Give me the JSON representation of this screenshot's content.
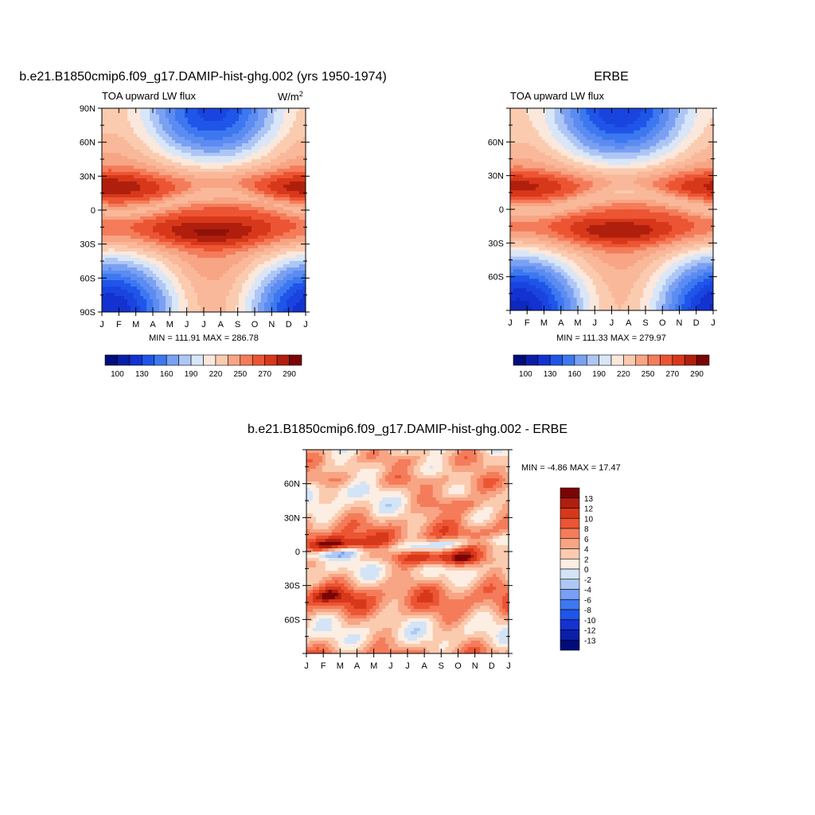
{
  "panels": [
    {
      "title": "b.e21.B1850cmip6.f09_g17.DAMIP-hist-ghg.002 (yrs 1950-1974)",
      "left_label": "TOA upward LW flux",
      "units": "W/m",
      "units_sup": "2",
      "stats": "MIN = 111.91 MAX = 286.78",
      "lat_ticks": [
        "90N",
        "60N",
        "30N",
        "0",
        "30S",
        "60S",
        "90S"
      ],
      "month_ticks": [
        "J",
        "F",
        "M",
        "A",
        "M",
        "J",
        "J",
        "A",
        "S",
        "O",
        "N",
        "D",
        "J"
      ]
    },
    {
      "title": "ERBE",
      "left_label": "TOA upward LW flux",
      "stats": "MIN = 111.33 MAX = 279.97",
      "lat_ticks": [
        "60N",
        "30N",
        "0",
        "30S",
        "60S"
      ],
      "month_ticks": [
        "J",
        "F",
        "M",
        "A",
        "M",
        "J",
        "J",
        "A",
        "S",
        "O",
        "N",
        "D",
        "J"
      ]
    },
    {
      "title": "b.e21.B1850cmip6.f09_g17.DAMIP-hist-ghg.002 - ERBE",
      "stats": "MIN =  -4.86 MAX =  17.47",
      "lat_ticks": [
        "60N",
        "30N",
        "0",
        "30S",
        "60S"
      ],
      "month_ticks": [
        "J",
        "F",
        "M",
        "A",
        "M",
        "J",
        "J",
        "A",
        "S",
        "O",
        "N",
        "D",
        "J"
      ]
    }
  ],
  "colorbar_main": {
    "labels": [
      "100",
      "130",
      "160",
      "190",
      "220",
      "250",
      "270",
      "290"
    ],
    "colors": [
      "#000d7a",
      "#0a1fa8",
      "#1432cf",
      "#1f55e8",
      "#3d78f0",
      "#7aa0f2",
      "#adc6f5",
      "#d9e6f7",
      "#fbe8dc",
      "#fbcbb0",
      "#f7a584",
      "#f47c5a",
      "#ec5533",
      "#d8381a",
      "#b01f0d",
      "#7a0505"
    ]
  },
  "colorbar_diff": {
    "labels": [
      "13",
      "12",
      "10",
      "8",
      "6",
      "4",
      "2",
      "0",
      "-2",
      "-4",
      "-6",
      "-8",
      "-10",
      "-12",
      "-13"
    ],
    "colors": [
      "#7a0505",
      "#b01f0d",
      "#d8381a",
      "#ec5533",
      "#f47c5a",
      "#f7a584",
      "#fbcbb0",
      "#fdeee3",
      "#d3e4f7",
      "#aec8f4",
      "#7aa0f2",
      "#3d78f0",
      "#1f55e8",
      "#1432cf",
      "#0a1fa8",
      "#000d7a"
    ]
  },
  "chart_data": [
    {
      "type": "heatmap",
      "title": "b.e21.B1850cmip6.f09_g17.DAMIP-hist-ghg.002 (yrs 1950-1974)",
      "variable": "TOA upward LW flux",
      "units": "W/m2",
      "x_categories": [
        "J",
        "F",
        "M",
        "A",
        "M",
        "J",
        "J",
        "A",
        "S",
        "O",
        "N",
        "D",
        "J"
      ],
      "ylim": [
        -90,
        90
      ],
      "min": 111.91,
      "max": 286.78,
      "contour_levels": [
        100,
        110,
        120,
        130,
        140,
        150,
        160,
        170,
        180,
        190,
        200,
        210,
        220,
        230,
        240,
        250,
        260,
        270,
        280,
        290
      ]
    },
    {
      "type": "heatmap",
      "title": "ERBE",
      "variable": "TOA upward LW flux",
      "x_categories": [
        "J",
        "F",
        "M",
        "A",
        "M",
        "J",
        "J",
        "A",
        "S",
        "O",
        "N",
        "D",
        "J"
      ],
      "ylim": [
        -90,
        90
      ],
      "min": 111.33,
      "max": 279.97
    },
    {
      "type": "heatmap",
      "title": "b.e21.B1850cmip6.f09_g17.DAMIP-hist-ghg.002 - ERBE",
      "x_categories": [
        "J",
        "F",
        "M",
        "A",
        "M",
        "J",
        "J",
        "A",
        "S",
        "O",
        "N",
        "D",
        "J"
      ],
      "ylim": [
        -90,
        90
      ],
      "min": -4.86,
      "max": 17.47,
      "contour_levels": [
        -13,
        -12,
        -10,
        -8,
        -6,
        -4,
        -2,
        0,
        2,
        4,
        6,
        8,
        10,
        12,
        13
      ]
    }
  ]
}
